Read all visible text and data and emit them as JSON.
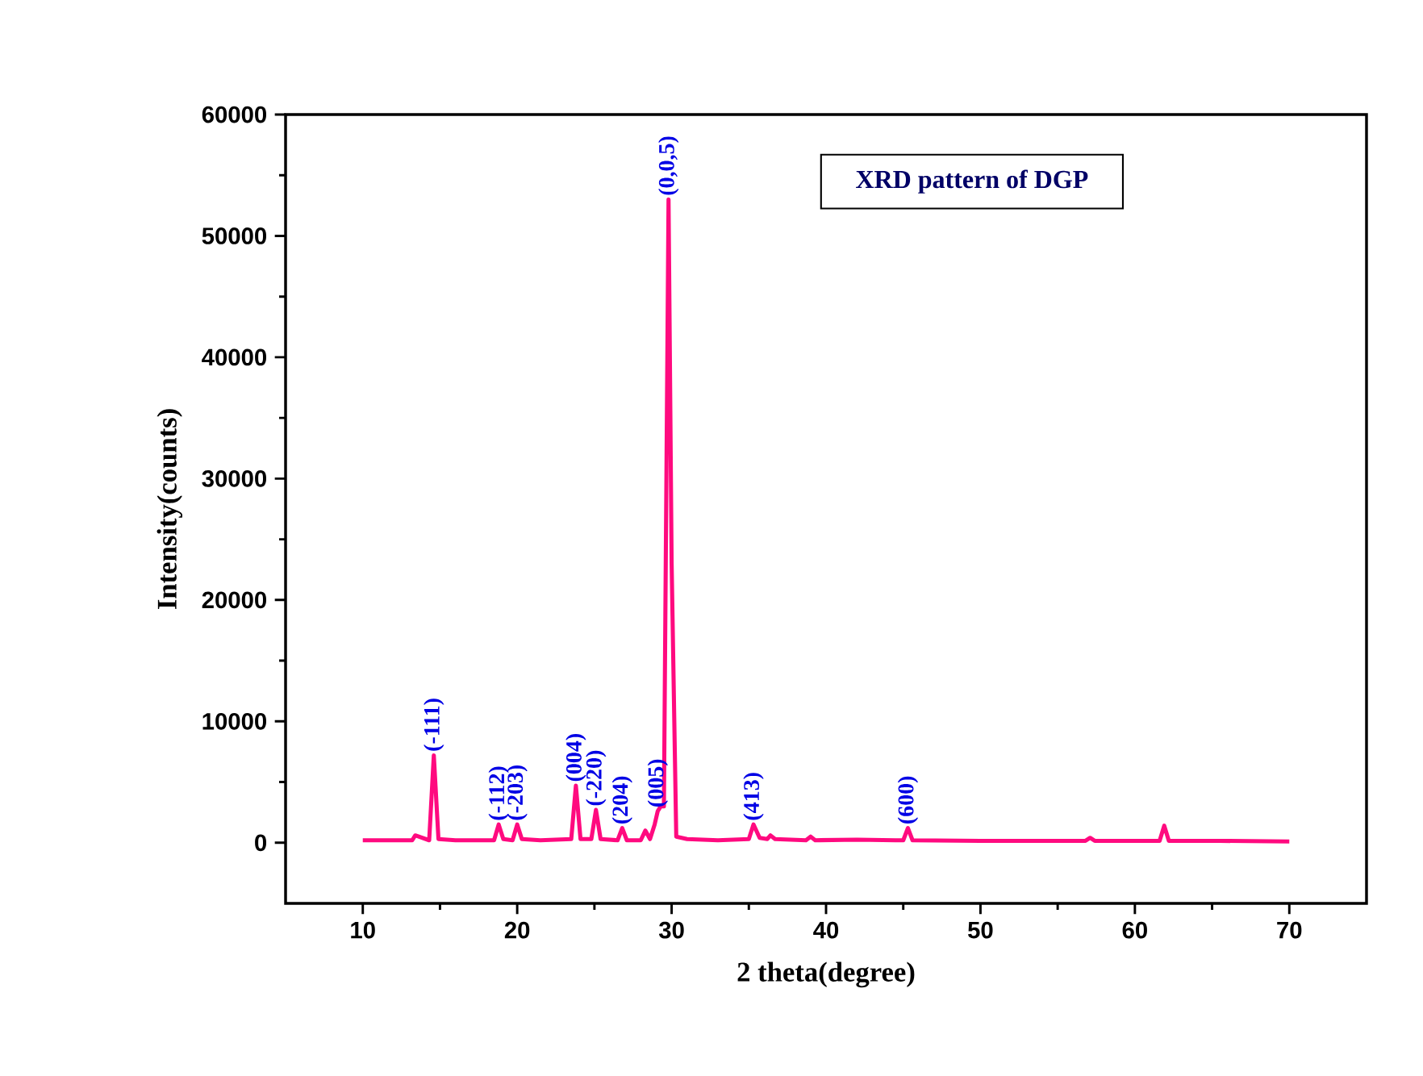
{
  "chart_data": {
    "type": "line",
    "title": "XRD pattern of DGP",
    "xlabel": "2 theta(degree)",
    "ylabel": "Intensity(counts)",
    "xlim": [
      5,
      75
    ],
    "ylim": [
      -5000,
      60000
    ],
    "xticks": [
      10,
      20,
      30,
      40,
      50,
      60,
      70
    ],
    "yticks": [
      0,
      10000,
      20000,
      30000,
      40000,
      50000,
      60000
    ],
    "series": [
      {
        "color": "#ff0a7f",
        "x": [
          10,
          12,
          13.2,
          13.4,
          14.3,
          14.6,
          14.9,
          16,
          18.5,
          18.8,
          19.1,
          19.7,
          20.0,
          20.3,
          21.5,
          23.5,
          23.8,
          24.1,
          24.8,
          25.1,
          25.4,
          26.5,
          26.8,
          27.1,
          28.0,
          28.3,
          28.6,
          28.9,
          29.1,
          29.3,
          29.5,
          29.8,
          30.0,
          30.3,
          31,
          33,
          35.0,
          35.3,
          35.7,
          36.2,
          36.4,
          36.7,
          38.7,
          39.0,
          39.3,
          42,
          44.5,
          45.0,
          45.3,
          45.6,
          50,
          56.8,
          57.1,
          57.4,
          61.6,
          61.9,
          62.2,
          65.5,
          70
        ],
        "values": [
          200,
          200,
          200,
          600,
          200,
          7200,
          300,
          200,
          200,
          1500,
          300,
          200,
          1500,
          300,
          200,
          300,
          4700,
          300,
          300,
          2700,
          300,
          200,
          1200,
          200,
          200,
          1000,
          300,
          1500,
          2600,
          3000,
          3000,
          53000,
          23000,
          500,
          300,
          200,
          300,
          1500,
          400,
          300,
          600,
          300,
          200,
          500,
          200,
          250,
          200,
          200,
          1200,
          200,
          150,
          150,
          400,
          150,
          150,
          1400,
          150,
          150,
          100
        ]
      }
    ],
    "annotations": [
      {
        "text": "(-111)",
        "x": 14.6,
        "y": 7200
      },
      {
        "text": "(-112)",
        "x": 18.8,
        "y": 1500
      },
      {
        "text": "(-203)",
        "x": 20.0,
        "y": 1500
      },
      {
        "text": "(004)",
        "x": 23.8,
        "y": 4700
      },
      {
        "text": "(-220)",
        "x": 25.1,
        "y": 2700
      },
      {
        "text": "(204)",
        "x": 26.8,
        "y": 1200
      },
      {
        "text": "(005)",
        "x": 29.1,
        "y": 2600
      },
      {
        "text": "(0,0,5)",
        "x": 29.8,
        "y": 53000
      },
      {
        "text": "(413)",
        "x": 35.3,
        "y": 1500
      },
      {
        "text": "(600)",
        "x": 45.3,
        "y": 1200
      }
    ]
  }
}
